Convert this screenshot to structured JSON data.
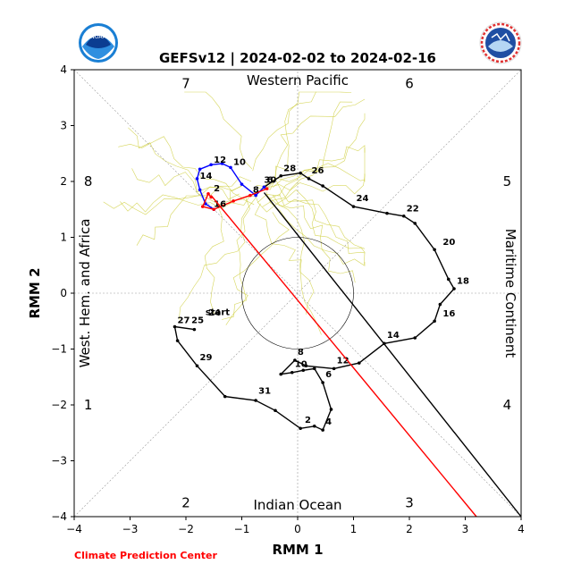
{
  "chart_data": {
    "type": "line",
    "title": "GEFSv12 | 2024-02-02 to 2024-02-16",
    "xlabel": "RMM 1",
    "ylabel": "RMM 2",
    "xlim": [
      -4,
      4
    ],
    "ylim": [
      -4,
      4
    ],
    "x_ticks": [
      "−4",
      "−3",
      "−2",
      "−1",
      "0",
      "1",
      "2",
      "3",
      "4"
    ],
    "y_ticks": [
      "−4",
      "−3",
      "−2",
      "−1",
      "0",
      "1",
      "2",
      "3",
      "4"
    ],
    "grid": false,
    "phase_numbers": [
      {
        "label": "1",
        "x": -3.75,
        "y": -2.0
      },
      {
        "label": "2",
        "x": -2.0,
        "y": -3.75
      },
      {
        "label": "3",
        "x": 2.0,
        "y": -3.75
      },
      {
        "label": "4",
        "x": 3.75,
        "y": -2.0
      },
      {
        "label": "5",
        "x": 3.75,
        "y": 2.0
      },
      {
        "label": "6",
        "x": 2.0,
        "y": 3.75
      },
      {
        "label": "7",
        "x": -2.0,
        "y": 3.75
      },
      {
        "label": "8",
        "x": -3.75,
        "y": 2.0
      }
    ],
    "region_labels": {
      "top": "Western Pacific",
      "bottom": "Indian Ocean",
      "left": "West. Hem. and Africa",
      "right": "Maritime Continent"
    },
    "start_label": {
      "text": "start",
      "x": -1.65,
      "y": -0.33
    },
    "series": [
      {
        "color": "#000000",
        "points": [
          [
            -1.85,
            -0.65
          ],
          [
            -2.2,
            -0.6
          ],
          [
            -2.15,
            -0.85
          ],
          [
            -1.8,
            -1.3
          ],
          [
            -1.3,
            -1.85
          ],
          [
            -0.75,
            -1.92
          ],
          [
            -0.4,
            -2.1
          ],
          [
            0.05,
            -2.42
          ],
          [
            0.3,
            -2.38
          ],
          [
            0.45,
            -2.45
          ],
          [
            0.6,
            -2.08
          ],
          [
            0.45,
            -1.6
          ],
          [
            0.3,
            -1.35
          ],
          [
            0.1,
            -1.38
          ],
          [
            -0.1,
            -1.42
          ],
          [
            -0.3,
            -1.45
          ],
          [
            -0.05,
            -1.2
          ],
          [
            0.15,
            -1.3
          ],
          [
            0.65,
            -1.35
          ],
          [
            1.1,
            -1.25
          ],
          [
            1.55,
            -0.9
          ],
          [
            2.1,
            -0.8
          ],
          [
            2.45,
            -0.5
          ],
          [
            2.55,
            -0.2
          ],
          [
            2.8,
            0.08
          ],
          [
            2.7,
            0.25
          ],
          [
            2.45,
            0.78
          ],
          [
            2.1,
            1.25
          ],
          [
            1.9,
            1.38
          ],
          [
            1.6,
            1.43
          ],
          [
            1.0,
            1.55
          ],
          [
            0.45,
            1.92
          ],
          [
            0.2,
            2.05
          ],
          [
            0.05,
            2.15
          ],
          [
            -0.3,
            2.1
          ],
          [
            -0.6,
            1.9
          ]
        ],
        "labels": [
          {
            "text": "24",
            "x": -1.65,
            "y": -0.45
          },
          {
            "text": "25",
            "x": -1.95,
            "y": -0.58
          },
          {
            "text": "27",
            "x": -2.2,
            "y": -0.58
          },
          {
            "text": "29",
            "x": -1.8,
            "y": -1.25
          },
          {
            "text": "31",
            "x": -0.75,
            "y": -1.85
          },
          {
            "text": "2",
            "x": 0.08,
            "y": -2.37
          },
          {
            "text": "4",
            "x": 0.45,
            "y": -2.4
          },
          {
            "text": "6",
            "x": 0.45,
            "y": -1.55
          },
          {
            "text": "8",
            "x": -0.05,
            "y": -1.15
          },
          {
            "text": "10",
            "x": -0.1,
            "y": -1.37
          },
          {
            "text": "12",
            "x": 0.65,
            "y": -1.3
          },
          {
            "text": "14",
            "x": 1.55,
            "y": -0.85
          },
          {
            "text": "16",
            "x": 2.55,
            "y": -0.46
          },
          {
            "text": "18",
            "x": 2.8,
            "y": 0.12
          },
          {
            "text": "20",
            "x": 2.55,
            "y": 0.82
          },
          {
            "text": "22",
            "x": 1.9,
            "y": 1.42
          },
          {
            "text": "24",
            "x": 1.0,
            "y": 1.6
          },
          {
            "text": "26",
            "x": 0.2,
            "y": 2.1
          },
          {
            "text": "28",
            "x": -0.3,
            "y": 2.14
          },
          {
            "text": "30",
            "x": -0.65,
            "y": 1.93
          }
        ]
      },
      {
        "color": "#0000ff",
        "points": [
          [
            -0.6,
            1.9
          ],
          [
            -0.75,
            1.75
          ],
          [
            -1.0,
            1.95
          ],
          [
            -1.2,
            2.25
          ],
          [
            -1.35,
            2.32
          ],
          [
            -1.55,
            2.3
          ],
          [
            -1.75,
            2.22
          ],
          [
            -1.8,
            2.05
          ],
          [
            -1.75,
            1.85
          ],
          [
            -1.65,
            1.6
          ],
          [
            -1.5,
            1.5
          ]
        ],
        "labels": [
          {
            "text": "10",
            "x": -1.2,
            "y": 2.25
          },
          {
            "text": "12",
            "x": -1.55,
            "y": 2.29
          },
          {
            "text": "14",
            "x": -1.8,
            "y": 2.0
          }
        ]
      },
      {
        "color": "#ff0000",
        "points": [
          [
            -0.55,
            1.87
          ],
          [
            -0.85,
            1.75
          ],
          [
            -1.15,
            1.65
          ],
          [
            -1.5,
            1.5
          ],
          [
            -1.7,
            1.55
          ],
          [
            -1.6,
            1.78
          ],
          [
            -1.55,
            1.72
          ]
        ],
        "labels": [
          {
            "text": "6",
            "x": -0.6,
            "y": 1.93
          },
          {
            "text": "8",
            "x": -0.85,
            "y": 1.75
          },
          {
            "text": "2",
            "x": -1.55,
            "y": 1.78
          },
          {
            "text": "16",
            "x": -1.55,
            "y": 1.5
          }
        ]
      }
    ],
    "forecast_spread_color": "#cccc33",
    "colors": {
      "observed": "#000000",
      "recent": "#0000ff",
      "forecast": "#ff0000",
      "footer": "#ff0000"
    }
  },
  "logos": {
    "left": {
      "text": "NOAA",
      "icon": "noaa-logo"
    },
    "right": {
      "text": "NATIONAL WEATHER SERVICE",
      "icon": "nws-logo"
    }
  },
  "footer_text": "Climate Prediction Center"
}
